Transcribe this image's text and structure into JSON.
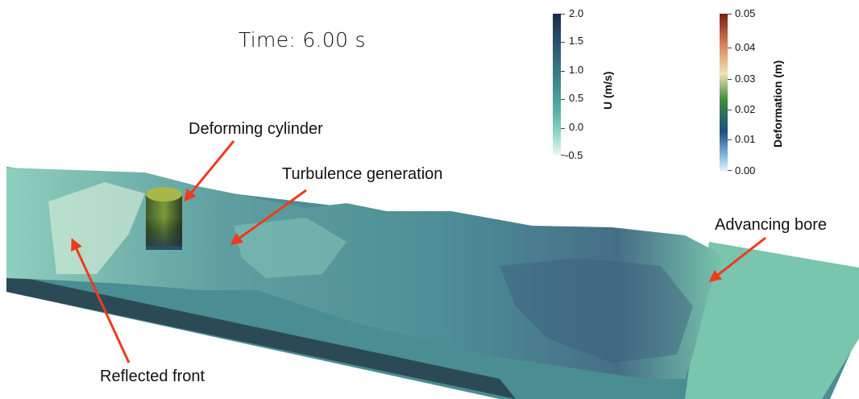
{
  "time_label": "Time: 6.00 s",
  "annotations": {
    "deforming_cylinder": "Deforming cylinder",
    "turbulence_generation": "Turbulence generation",
    "advancing_bore": "Advancing bore",
    "reflected_front": "Reflected front"
  },
  "velocity_colorbar": {
    "title": "U (m/s)",
    "ticks": [
      "2.0",
      "1.5",
      "1.0",
      "0.5",
      "0.0",
      "-0.5"
    ],
    "colors": [
      "#1c2b4a",
      "#2e5a73",
      "#3f8a8e",
      "#5bb1a7",
      "#93d6c8",
      "#e8f8f3"
    ]
  },
  "deformation_colorbar": {
    "title": "Deformation (m)",
    "ticks": [
      "0.05",
      "0.04",
      "0.03",
      "0.02",
      "0.01",
      "0.00"
    ],
    "colors": [
      "#7a1f12",
      "#d9825a",
      "#efe3b4",
      "#3d8c3a",
      "#1c4e86",
      "#7fb8df",
      "#e6f1fb"
    ]
  },
  "colors": {
    "arrow": "#ee3b1c",
    "water_calm": "#79c5ad",
    "cylinder_top": "#a6b84a"
  }
}
